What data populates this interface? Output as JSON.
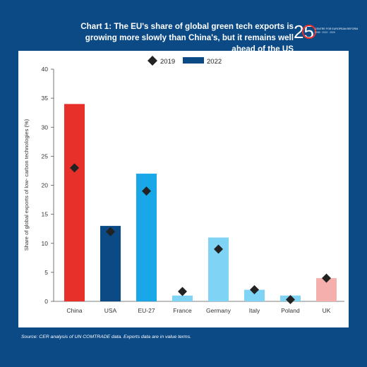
{
  "header": {
    "title": "Chart 1: The EU's share of global green tech exports is growing more slowly than China's, but it remains well ahead of the US"
  },
  "logo": {
    "mark": "25",
    "line1": "CENTRE FOR EUROPEAN REFORM",
    "line2": "1998 · 2023 · 2025"
  },
  "footer": {
    "source": "Source: CER analysis of UN COMTRADE data. Exports data are in value terms."
  },
  "colors": {
    "page_background": "#0c4a86",
    "panel_background": "#ffffff",
    "marker_2019": "#222222",
    "legend_2022": "#0b4a85"
  },
  "chart_data": {
    "type": "bar",
    "categories": [
      "China",
      "USA",
      "EU-27",
      "France",
      "Germany",
      "Italy",
      "Poland",
      "UK"
    ],
    "bar_colors": [
      "#e8302a",
      "#0b4a85",
      "#19a7e8",
      "#7fd3f5",
      "#7fd3f5",
      "#7fd3f5",
      "#7fd3f5",
      "#f5b0ad"
    ],
    "series": [
      {
        "name": "2019",
        "marker": "diamond",
        "values": [
          23,
          12,
          19,
          1.7,
          9,
          2,
          0.3,
          4
        ]
      },
      {
        "name": "2022",
        "marker": "bar",
        "values": [
          34,
          13,
          22,
          1,
          11,
          2,
          1,
          4
        ]
      }
    ],
    "ylabel": "Share of global exports of low- carbon technologies (%)",
    "xlabel": "",
    "ylim": [
      0,
      40
    ],
    "yticks": [
      0,
      5,
      10,
      15,
      20,
      25,
      30,
      35,
      40
    ],
    "grid": false,
    "legend_position": "top-center"
  }
}
